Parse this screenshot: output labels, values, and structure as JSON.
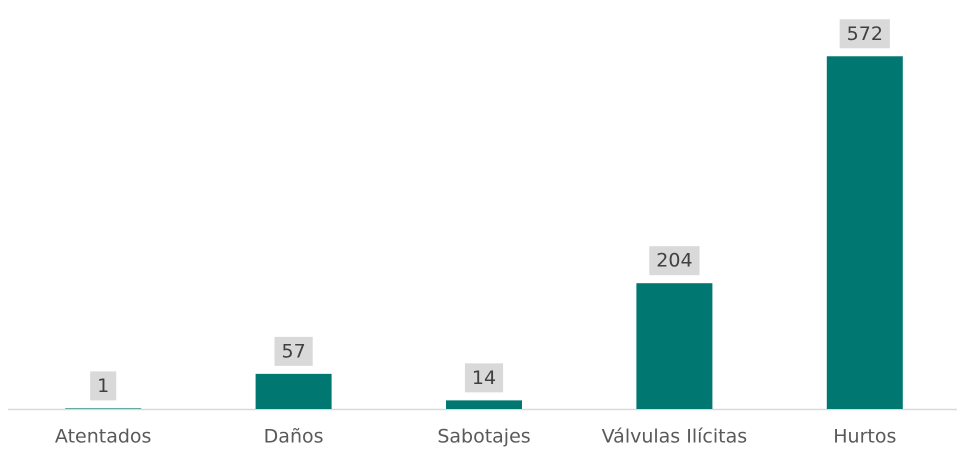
{
  "chart_data": {
    "type": "bar",
    "categories": [
      "Atentados",
      "Daños",
      "Sabotajes",
      "Válvulas Ilícitas",
      "Hurtos"
    ],
    "values": [
      1,
      57,
      14,
      204,
      572
    ],
    "color": "#007770",
    "ylim": [
      0,
      600
    ]
  }
}
